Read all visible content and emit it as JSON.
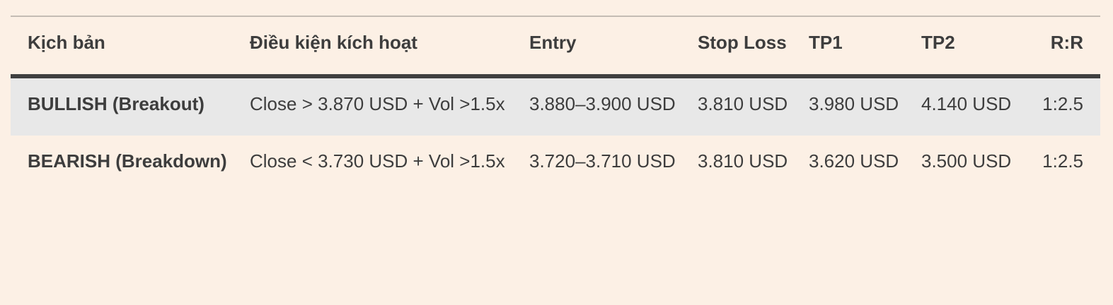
{
  "table": {
    "headers": [
      "Kịch bản",
      "Điều kiện kích hoạt",
      "Entry",
      "Stop Loss",
      "TP1",
      "TP2",
      "R:R"
    ],
    "rows": [
      [
        "BULLISH (Breakout)",
        "Close > 3.870 USD + Vol >1.5x",
        "3.880–3.900 USD",
        "3.810 USD",
        "3.980 USD",
        "4.140 USD",
        "1:2.5"
      ],
      [
        "BEARISH (Breakdown)",
        "Close < 3.730 USD + Vol >1.5x",
        "3.720–3.710 USD",
        "3.810 USD",
        "3.620 USD",
        "3.500 USD",
        "1:2.5"
      ]
    ]
  },
  "colors": {
    "background": "#fcf0e5",
    "shaded_row": "#e8e8e8",
    "text": "#3d3d3d",
    "header_rule": "#3f3f3f"
  }
}
